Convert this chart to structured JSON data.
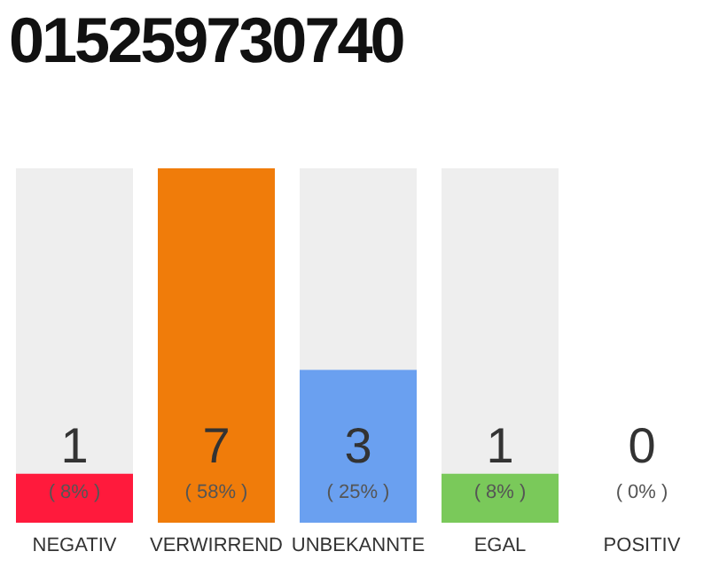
{
  "chart_data": {
    "type": "bar",
    "title": "015259730740",
    "categories": [
      "NEGATIV",
      "VERWIRREND",
      "UNBEKANNTE",
      "EGAL",
      "POSITIV"
    ],
    "values": [
      8,
      58,
      25,
      8,
      0
    ],
    "colors": [
      "#ff1a3c",
      "#f07c0a",
      "#6aa0f0",
      "#7ac95a",
      "#cccccc"
    ],
    "value_labels": [
      "( 8% )",
      "( 58% )",
      "( 25% )",
      "( 8% )",
      "( 0% )"
    ],
    "annotations": [
      "1",
      "7",
      "3",
      "1",
      "0"
    ],
    "grid": false,
    "legend": false
  }
}
